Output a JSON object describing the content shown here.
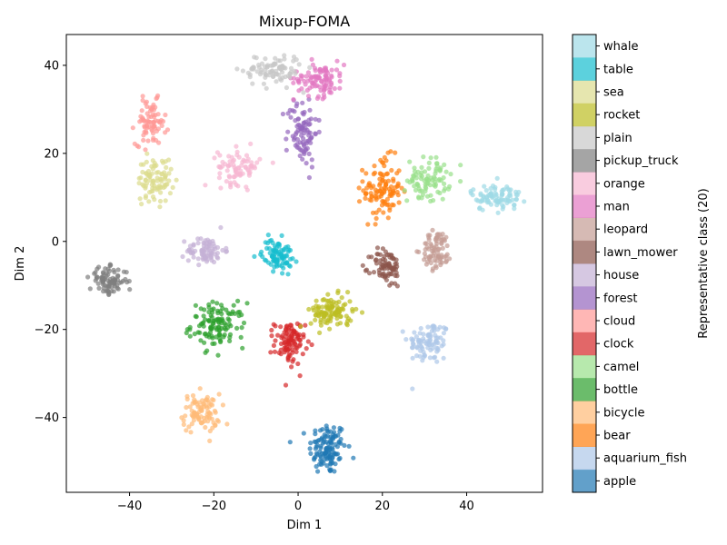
{
  "chart_data": {
    "type": "scatter",
    "title": "Mixup-FOMA",
    "xlabel": "Dim 1",
    "ylabel": "Dim 2",
    "xlim": [
      -55,
      58
    ],
    "ylim": [
      -57,
      47
    ],
    "xticks": [
      -40,
      -20,
      0,
      20,
      40
    ],
    "yticks": [
      -40,
      -20,
      0,
      20,
      40
    ],
    "grid": false,
    "colorbar": {
      "label": "Representative class (20)",
      "classes": [
        {
          "name": "apple",
          "color": "#1f77b4"
        },
        {
          "name": "aquarium_fish",
          "color": "#aec7e8"
        },
        {
          "name": "bear",
          "color": "#ff7f0e"
        },
        {
          "name": "bicycle",
          "color": "#ffbb78"
        },
        {
          "name": "bottle",
          "color": "#2ca02c"
        },
        {
          "name": "camel",
          "color": "#98df8a"
        },
        {
          "name": "clock",
          "color": "#d62728"
        },
        {
          "name": "cloud",
          "color": "#ff9896"
        },
        {
          "name": "forest",
          "color": "#9467bd"
        },
        {
          "name": "house",
          "color": "#c5b0d5"
        },
        {
          "name": "lawn_mower",
          "color": "#8c564b"
        },
        {
          "name": "leopard",
          "color": "#c49c94"
        },
        {
          "name": "man",
          "color": "#e377c2"
        },
        {
          "name": "orange",
          "color": "#f7b6d2"
        },
        {
          "name": "pickup_truck",
          "color": "#7f7f7f"
        },
        {
          "name": "plain",
          "color": "#c7c7c7"
        },
        {
          "name": "rocket",
          "color": "#bcbd22"
        },
        {
          "name": "sea",
          "color": "#dbdb8d"
        },
        {
          "name": "table",
          "color": "#17becf"
        },
        {
          "name": "whale",
          "color": "#9edae5"
        }
      ]
    },
    "clusters": [
      {
        "class": "apple",
        "center": [
          7,
          -47
        ],
        "spread": [
          2.2,
          3.0
        ],
        "n": 120
      },
      {
        "class": "aquarium_fish",
        "center": [
          31,
          -23
        ],
        "spread": [
          2.5,
          2.5
        ],
        "n": 90
      },
      {
        "class": "bear",
        "center": [
          20,
          12
        ],
        "spread": [
          2.2,
          3.5
        ],
        "n": 110
      },
      {
        "class": "bicycle",
        "center": [
          -23,
          -39
        ],
        "spread": [
          2.2,
          2.2
        ],
        "n": 90
      },
      {
        "class": "bottle",
        "center": [
          -19,
          -19
        ],
        "spread": [
          3.2,
          2.5
        ],
        "n": 120
      },
      {
        "class": "camel",
        "center": [
          31,
          14
        ],
        "spread": [
          2.5,
          2.5
        ],
        "n": 90
      },
      {
        "class": "clock",
        "center": [
          -2,
          -23
        ],
        "spread": [
          1.8,
          2.5
        ],
        "n": 100
      },
      {
        "class": "cloud",
        "center": [
          -35,
          27
        ],
        "spread": [
          1.8,
          2.5
        ],
        "n": 80
      },
      {
        "class": "forest",
        "center": [
          1,
          25
        ],
        "spread": [
          1.8,
          4.0
        ],
        "n": 90
      },
      {
        "class": "house",
        "center": [
          -22,
          -2
        ],
        "spread": [
          2.2,
          1.5
        ],
        "n": 80
      },
      {
        "class": "lawn_mower",
        "center": [
          21,
          -6
        ],
        "spread": [
          1.8,
          2.2
        ],
        "n": 80
      },
      {
        "class": "leopard",
        "center": [
          33,
          -2
        ],
        "spread": [
          1.8,
          2.2
        ],
        "n": 80
      },
      {
        "class": "man",
        "center": [
          5,
          37
        ],
        "spread": [
          3.0,
          2.0
        ],
        "n": 100
      },
      {
        "class": "orange",
        "center": [
          -14,
          17
        ],
        "spread": [
          2.5,
          2.0
        ],
        "n": 80
      },
      {
        "class": "pickup_truck",
        "center": [
          -45,
          -9
        ],
        "spread": [
          2.2,
          1.5
        ],
        "n": 90
      },
      {
        "class": "plain",
        "center": [
          -6,
          39
        ],
        "spread": [
          3.5,
          1.8
        ],
        "n": 90
      },
      {
        "class": "rocket",
        "center": [
          8,
          -16
        ],
        "spread": [
          2.5,
          1.8
        ],
        "n": 110
      },
      {
        "class": "sea",
        "center": [
          -34,
          14
        ],
        "spread": [
          2.0,
          2.5
        ],
        "n": 90
      },
      {
        "class": "table",
        "center": [
          -5,
          -3
        ],
        "spread": [
          1.8,
          1.8
        ],
        "n": 90
      },
      {
        "class": "whale",
        "center": [
          47,
          10
        ],
        "spread": [
          3.0,
          1.5
        ],
        "n": 90
      }
    ]
  }
}
